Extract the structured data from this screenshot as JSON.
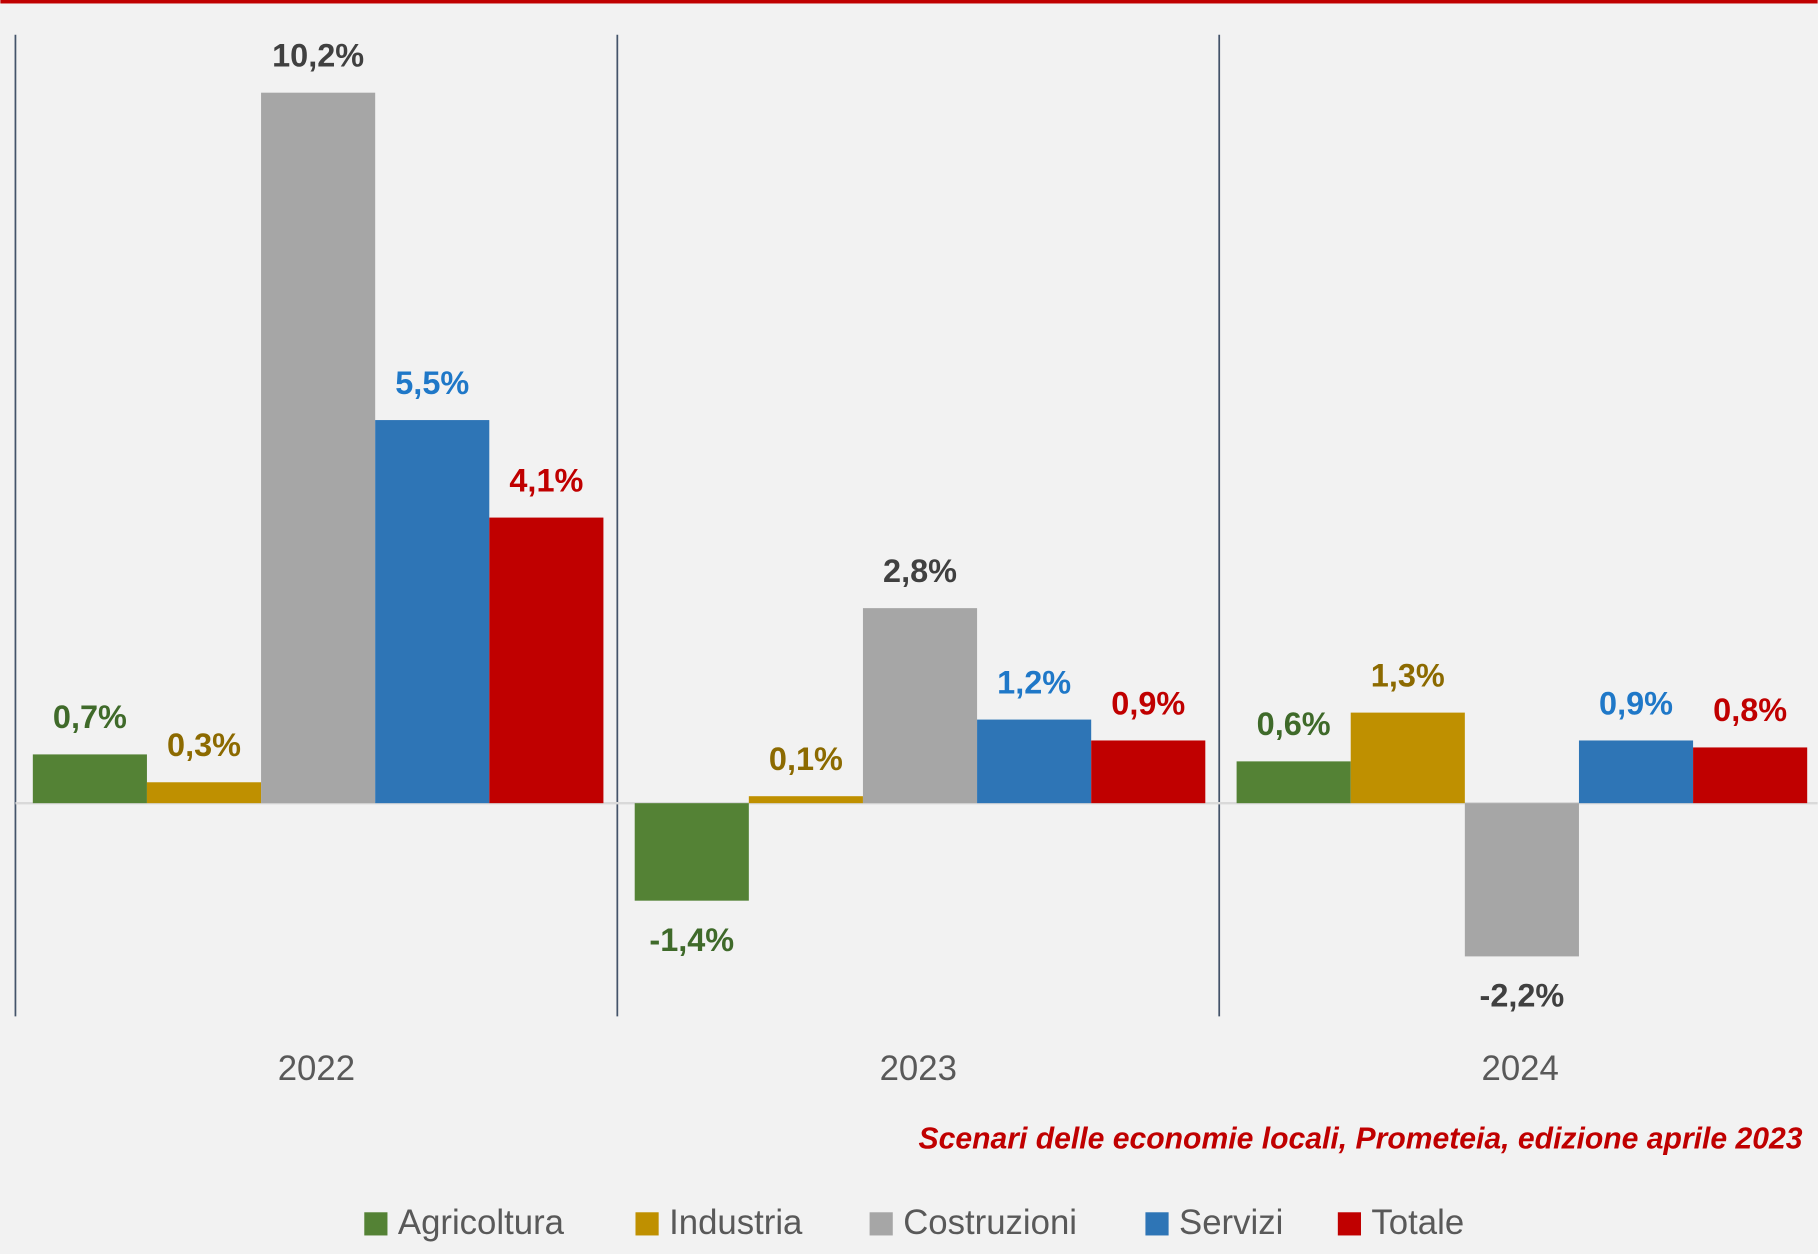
{
  "chart_data": {
    "type": "bar",
    "categories": [
      "2022",
      "2023",
      "2024"
    ],
    "series": [
      {
        "name": "Agricoltura",
        "color": "#548235",
        "label_color": "#3f6a2a",
        "values": [
          0.7,
          -1.4,
          0.6
        ],
        "value_labels": [
          "0,7%",
          "-1,4%",
          "0,6%"
        ]
      },
      {
        "name": "Industria",
        "color": "#bf9000",
        "label_color": "#8c6a00",
        "values": [
          0.3,
          0.1,
          1.3
        ],
        "value_labels": [
          "0,3%",
          "0,1%",
          "1,3%"
        ]
      },
      {
        "name": "Costruzioni",
        "color": "#a6a6a6",
        "label_color": "#404040",
        "values": [
          10.2,
          2.8,
          -2.2
        ],
        "value_labels": [
          "10,2%",
          "2,8%",
          "-2,2%"
        ]
      },
      {
        "name": "Servizi",
        "color": "#2e75b6",
        "label_color": "#1f78c8",
        "values": [
          5.5,
          1.2,
          0.9
        ],
        "value_labels": [
          "5,5%",
          "1,2%",
          "0,9%"
        ]
      },
      {
        "name": "Totale",
        "color": "#c00000",
        "label_color": "#c00000",
        "values": [
          4.1,
          0.9,
          0.8
        ],
        "value_labels": [
          "4,1%",
          "0,9%",
          "0,8%"
        ]
      }
    ],
    "ylim": [
      -3,
      11
    ],
    "source": "Scenari delle economie locali, Prometeia, edizione aprile 2023"
  }
}
